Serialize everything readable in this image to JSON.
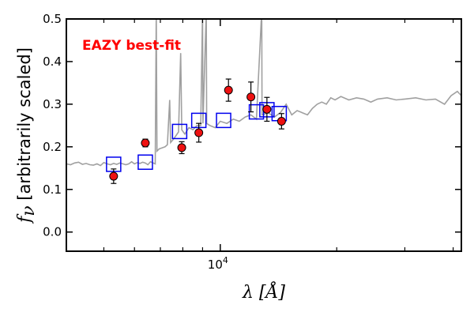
{
  "chart_data": {
    "type": "scatter",
    "xscale": "log",
    "xlim": [
      4000,
      42000
    ],
    "ylim": [
      -0.045,
      0.5
    ],
    "ylabel_math": "f",
    "ylabel_sub": "ν",
    "ylabel_text": " [arbitrarily scaled]",
    "xlabel_math": "λ",
    "xlabel_text": " [Å]",
    "yticks": [
      0.0,
      0.1,
      0.2,
      0.3,
      0.4,
      0.5
    ],
    "ytick_labels": [
      "0.0",
      "0.1",
      "0.2",
      "0.3",
      "0.4",
      "0.5"
    ],
    "xtick_major": [
      10000
    ],
    "xtick_base": "10",
    "xtick_exp": "4",
    "xtick_minor": [
      5000,
      6000,
      7000,
      8000,
      9000,
      20000,
      30000,
      40000
    ],
    "annotation": "EAZY best-fit",
    "colors": {
      "annotation": "#ff0000",
      "template": "#a0a0a0",
      "observed_fill": "#ee1111",
      "observed_edge": "#000000",
      "model_edge": "#0000ee",
      "axes": "#000000"
    },
    "series": [
      {
        "kind": "line",
        "points": [
          [
            4000,
            0.16
          ],
          [
            4100,
            0.158
          ],
          [
            4200,
            0.162
          ],
          [
            4300,
            0.164
          ],
          [
            4400,
            0.159
          ],
          [
            4500,
            0.161
          ],
          [
            4600,
            0.158
          ],
          [
            4700,
            0.157
          ],
          [
            4800,
            0.16
          ],
          [
            4900,
            0.156
          ],
          [
            5000,
            0.163
          ],
          [
            5100,
            0.16
          ],
          [
            5200,
            0.158
          ],
          [
            5300,
            0.161
          ],
          [
            5400,
            0.159
          ],
          [
            5500,
            0.162
          ],
          [
            5600,
            0.16
          ],
          [
            5700,
            0.158
          ],
          [
            5800,
            0.16
          ],
          [
            5900,
            0.165
          ],
          [
            6000,
            0.16
          ],
          [
            6100,
            0.163
          ],
          [
            6200,
            0.161
          ],
          [
            6300,
            0.164
          ],
          [
            6400,
            0.162
          ],
          [
            6500,
            0.158
          ],
          [
            6600,
            0.165
          ],
          [
            6700,
            0.162
          ],
          [
            6790,
            0.16
          ],
          [
            6830,
            0.52
          ],
          [
            6860,
            0.19
          ],
          [
            6950,
            0.195
          ],
          [
            7100,
            0.198
          ],
          [
            7200,
            0.2
          ],
          [
            7300,
            0.205
          ],
          [
            7400,
            0.31
          ],
          [
            7440,
            0.21
          ],
          [
            7600,
            0.22
          ],
          [
            7800,
            0.235
          ],
          [
            7900,
            0.42
          ],
          [
            7950,
            0.24
          ],
          [
            8100,
            0.23
          ],
          [
            8300,
            0.245
          ],
          [
            8500,
            0.24
          ],
          [
            8700,
            0.25
          ],
          [
            8900,
            0.25
          ],
          [
            9000,
            0.52
          ],
          [
            9020,
            0.255
          ],
          [
            9200,
            0.52
          ],
          [
            9220,
            0.255
          ],
          [
            9400,
            0.25
          ],
          [
            9700,
            0.245
          ],
          [
            10000,
            0.26
          ],
          [
            10400,
            0.255
          ],
          [
            10800,
            0.265
          ],
          [
            11200,
            0.26
          ],
          [
            11600,
            0.27
          ],
          [
            12000,
            0.275
          ],
          [
            12400,
            0.265
          ],
          [
            12800,
            0.52
          ],
          [
            12820,
            0.275
          ],
          [
            13300,
            0.28
          ],
          [
            13800,
            0.27
          ],
          [
            14300,
            0.28
          ],
          [
            14800,
            0.3
          ],
          [
            15300,
            0.275
          ],
          [
            15800,
            0.285
          ],
          [
            16300,
            0.28
          ],
          [
            16800,
            0.275
          ],
          [
            17300,
            0.29
          ],
          [
            17800,
            0.3
          ],
          [
            18300,
            0.305
          ],
          [
            18800,
            0.3
          ],
          [
            19300,
            0.315
          ],
          [
            19800,
            0.31
          ],
          [
            20500,
            0.318
          ],
          [
            21500,
            0.31
          ],
          [
            22500,
            0.315
          ],
          [
            23500,
            0.312
          ],
          [
            24500,
            0.305
          ],
          [
            25500,
            0.312
          ],
          [
            27000,
            0.315
          ],
          [
            28500,
            0.31
          ],
          [
            30000,
            0.312
          ],
          [
            32000,
            0.315
          ],
          [
            34000,
            0.31
          ],
          [
            36000,
            0.312
          ],
          [
            38000,
            0.3
          ],
          [
            39500,
            0.32
          ],
          [
            41000,
            0.33
          ],
          [
            42000,
            0.32
          ]
        ]
      },
      {
        "kind": "observed",
        "x": [
          5300,
          6400,
          7950,
          8800,
          10500,
          12000,
          13200,
          14400
        ],
        "y": [
          0.131,
          0.209,
          0.198,
          0.233,
          0.333,
          0.317,
          0.288,
          0.26
        ],
        "err": [
          0.017,
          0.009,
          0.014,
          0.022,
          0.026,
          0.035,
          0.028,
          0.018
        ]
      },
      {
        "kind": "model",
        "x": [
          5300,
          6400,
          7850,
          8800,
          10200,
          12400,
          13200,
          14200
        ],
        "y": [
          0.159,
          0.164,
          0.236,
          0.262,
          0.262,
          0.282,
          0.287,
          0.278
        ]
      }
    ]
  }
}
